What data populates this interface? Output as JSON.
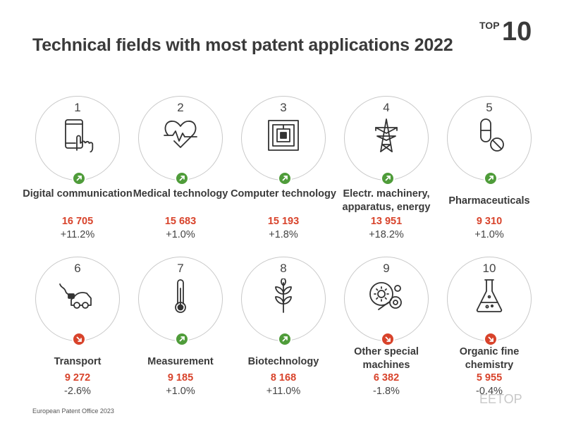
{
  "title": "Technical fields with most patent applications 2022",
  "badge": {
    "word": "TOP",
    "number": "10"
  },
  "colors": {
    "up": "#4f9c3a",
    "down": "#d8432b",
    "figure": "#d8432b"
  },
  "fields": [
    {
      "rank": "1",
      "name": "Digital communication",
      "applications": "16 705",
      "change": "+11.2%",
      "trend": "up",
      "icon": "smartphone-touch-icon"
    },
    {
      "rank": "2",
      "name": "Medical technology",
      "applications": "15 683",
      "change": "+1.0%",
      "trend": "up",
      "icon": "heart-pulse-icon"
    },
    {
      "rank": "3",
      "name": "Computer technology",
      "applications": "15 193",
      "change": "+1.8%",
      "trend": "up",
      "icon": "microchip-icon"
    },
    {
      "rank": "4",
      "name": "Electr. machinery, apparatus, energy",
      "applications": "13 951",
      "change": "+18.2%",
      "trend": "up",
      "icon": "power-pylon-icon"
    },
    {
      "rank": "5",
      "name": "Pharmaceuticals",
      "applications": "9 310",
      "change": "+1.0%",
      "trend": "up",
      "icon": "pill-capsule-icon"
    },
    {
      "rank": "6",
      "name": "Transport",
      "applications": "9 272",
      "change": "-2.6%",
      "trend": "down",
      "icon": "electric-car-icon"
    },
    {
      "rank": "7",
      "name": "Measurement",
      "applications": "9 185",
      "change": "+1.0%",
      "trend": "up",
      "icon": "thermometer-icon"
    },
    {
      "rank": "8",
      "name": "Biotechnology",
      "applications": "8 168",
      "change": "+11.0%",
      "trend": "up",
      "icon": "plant-leaf-icon"
    },
    {
      "rank": "9",
      "name": "Other special machines",
      "applications": "6 382",
      "change": "-1.8%",
      "trend": "down",
      "icon": "machine-gears-icon"
    },
    {
      "rank": "10",
      "name": "Organic fine chemistry",
      "applications": "5 955",
      "change": "-0.4%",
      "trend": "down",
      "icon": "flask-icon"
    }
  ],
  "source": "European Patent Office 2023",
  "watermark": "EETOP"
}
